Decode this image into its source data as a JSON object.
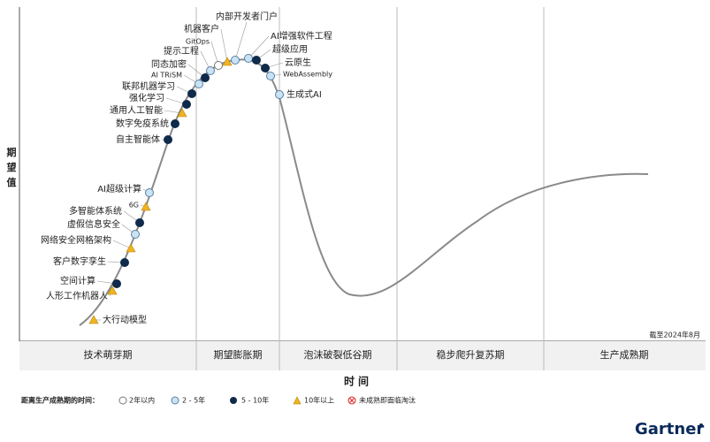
{
  "y_axis_label": "期望值",
  "x_axis_label": "时间",
  "as_of": "截至2024年8月",
  "phases": [
    "技术萌芽期",
    "期望膨胀期",
    "泡沫破裂低谷期",
    "稳步爬升复苏期",
    "生产成熟期"
  ],
  "nodes": [
    {
      "label": "大行动模型"
    },
    {
      "label": "人形工作机器人"
    },
    {
      "label": "空间计算"
    },
    {
      "label": "客户数字孪生"
    },
    {
      "label": "网络安全网格架构"
    },
    {
      "label": "虚假信息安全"
    },
    {
      "label": "多智能体系统"
    },
    {
      "label": "6G"
    },
    {
      "label": "AI超级计算"
    },
    {
      "label": "自主智能体"
    },
    {
      "label": "数字免疫系统"
    },
    {
      "label": "通用人工智能"
    },
    {
      "label": "强化学习"
    },
    {
      "label": "联邦机器学习"
    },
    {
      "label": "AI TRiSM"
    },
    {
      "label": "同态加密"
    },
    {
      "label": "提示工程"
    },
    {
      "label": "GitOps"
    },
    {
      "label": "机器客户"
    },
    {
      "label": "内部开发者门户"
    },
    {
      "label": "AI增强软件工程"
    },
    {
      "label": "超级应用"
    },
    {
      "label": "云原生"
    },
    {
      "label": "WebAssembly"
    },
    {
      "label": "生成式AI"
    }
  ],
  "legend": {
    "title": "距离生产成熟期的时间：",
    "items": [
      "2年以内",
      "2 - 5年",
      "5 - 10年",
      "10年以上",
      "未成熟即面临淘汰"
    ]
  },
  "brand": "Gartner"
}
